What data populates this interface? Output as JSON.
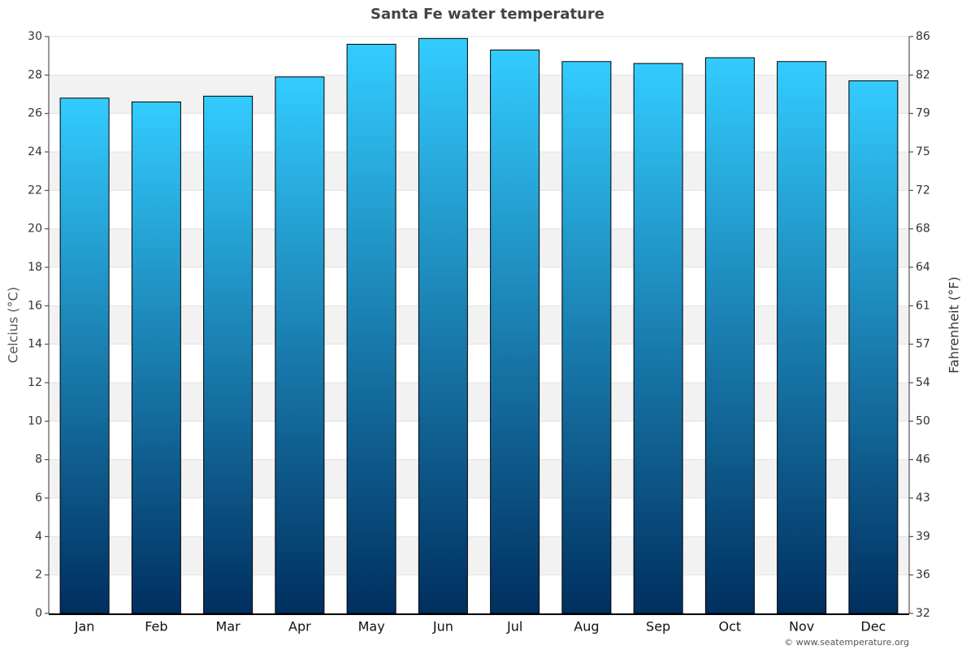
{
  "chart_data": {
    "type": "bar",
    "title": "Santa Fe water temperature",
    "categories": [
      "Jan",
      "Feb",
      "Mar",
      "Apr",
      "May",
      "Jun",
      "Jul",
      "Aug",
      "Sep",
      "Oct",
      "Nov",
      "Dec"
    ],
    "values": [
      26.8,
      26.6,
      26.9,
      27.9,
      29.6,
      29.9,
      29.3,
      28.7,
      28.6,
      28.9,
      28.7,
      27.7
    ],
    "gradient": [
      "#33ccff",
      "#002f5f"
    ],
    "ylabel": "Celcius (°C)",
    "y2label": "Fahrenheit (°F)",
    "ylim": [
      0,
      30
    ],
    "yticks": [
      0,
      2,
      4,
      6,
      8,
      10,
      12,
      14,
      16,
      18,
      20,
      22,
      24,
      26,
      28,
      30
    ],
    "y2lim": [
      32,
      86
    ],
    "y2ticks": [
      32,
      {
        "value": 35.6,
        "label": "36"
      },
      {
        "value": 39.2,
        "label": "39"
      },
      {
        "value": 42.8,
        "label": "43"
      },
      {
        "value": 46.4,
        "label": "46"
      },
      50,
      {
        "value": 53.6,
        "label": "54"
      },
      {
        "value": 57.2,
        "label": "57"
      },
      {
        "value": 60.8,
        "label": "61"
      },
      {
        "value": 64.4,
        "label": "64"
      },
      68,
      {
        "value": 71.6,
        "label": "72"
      },
      {
        "value": 75.2,
        "label": "75"
      },
      {
        "value": 78.8,
        "label": "79"
      },
      {
        "value": 82.4,
        "label": "82"
      },
      86
    ],
    "grid": true,
    "source": "© www.seatemperature.org"
  }
}
